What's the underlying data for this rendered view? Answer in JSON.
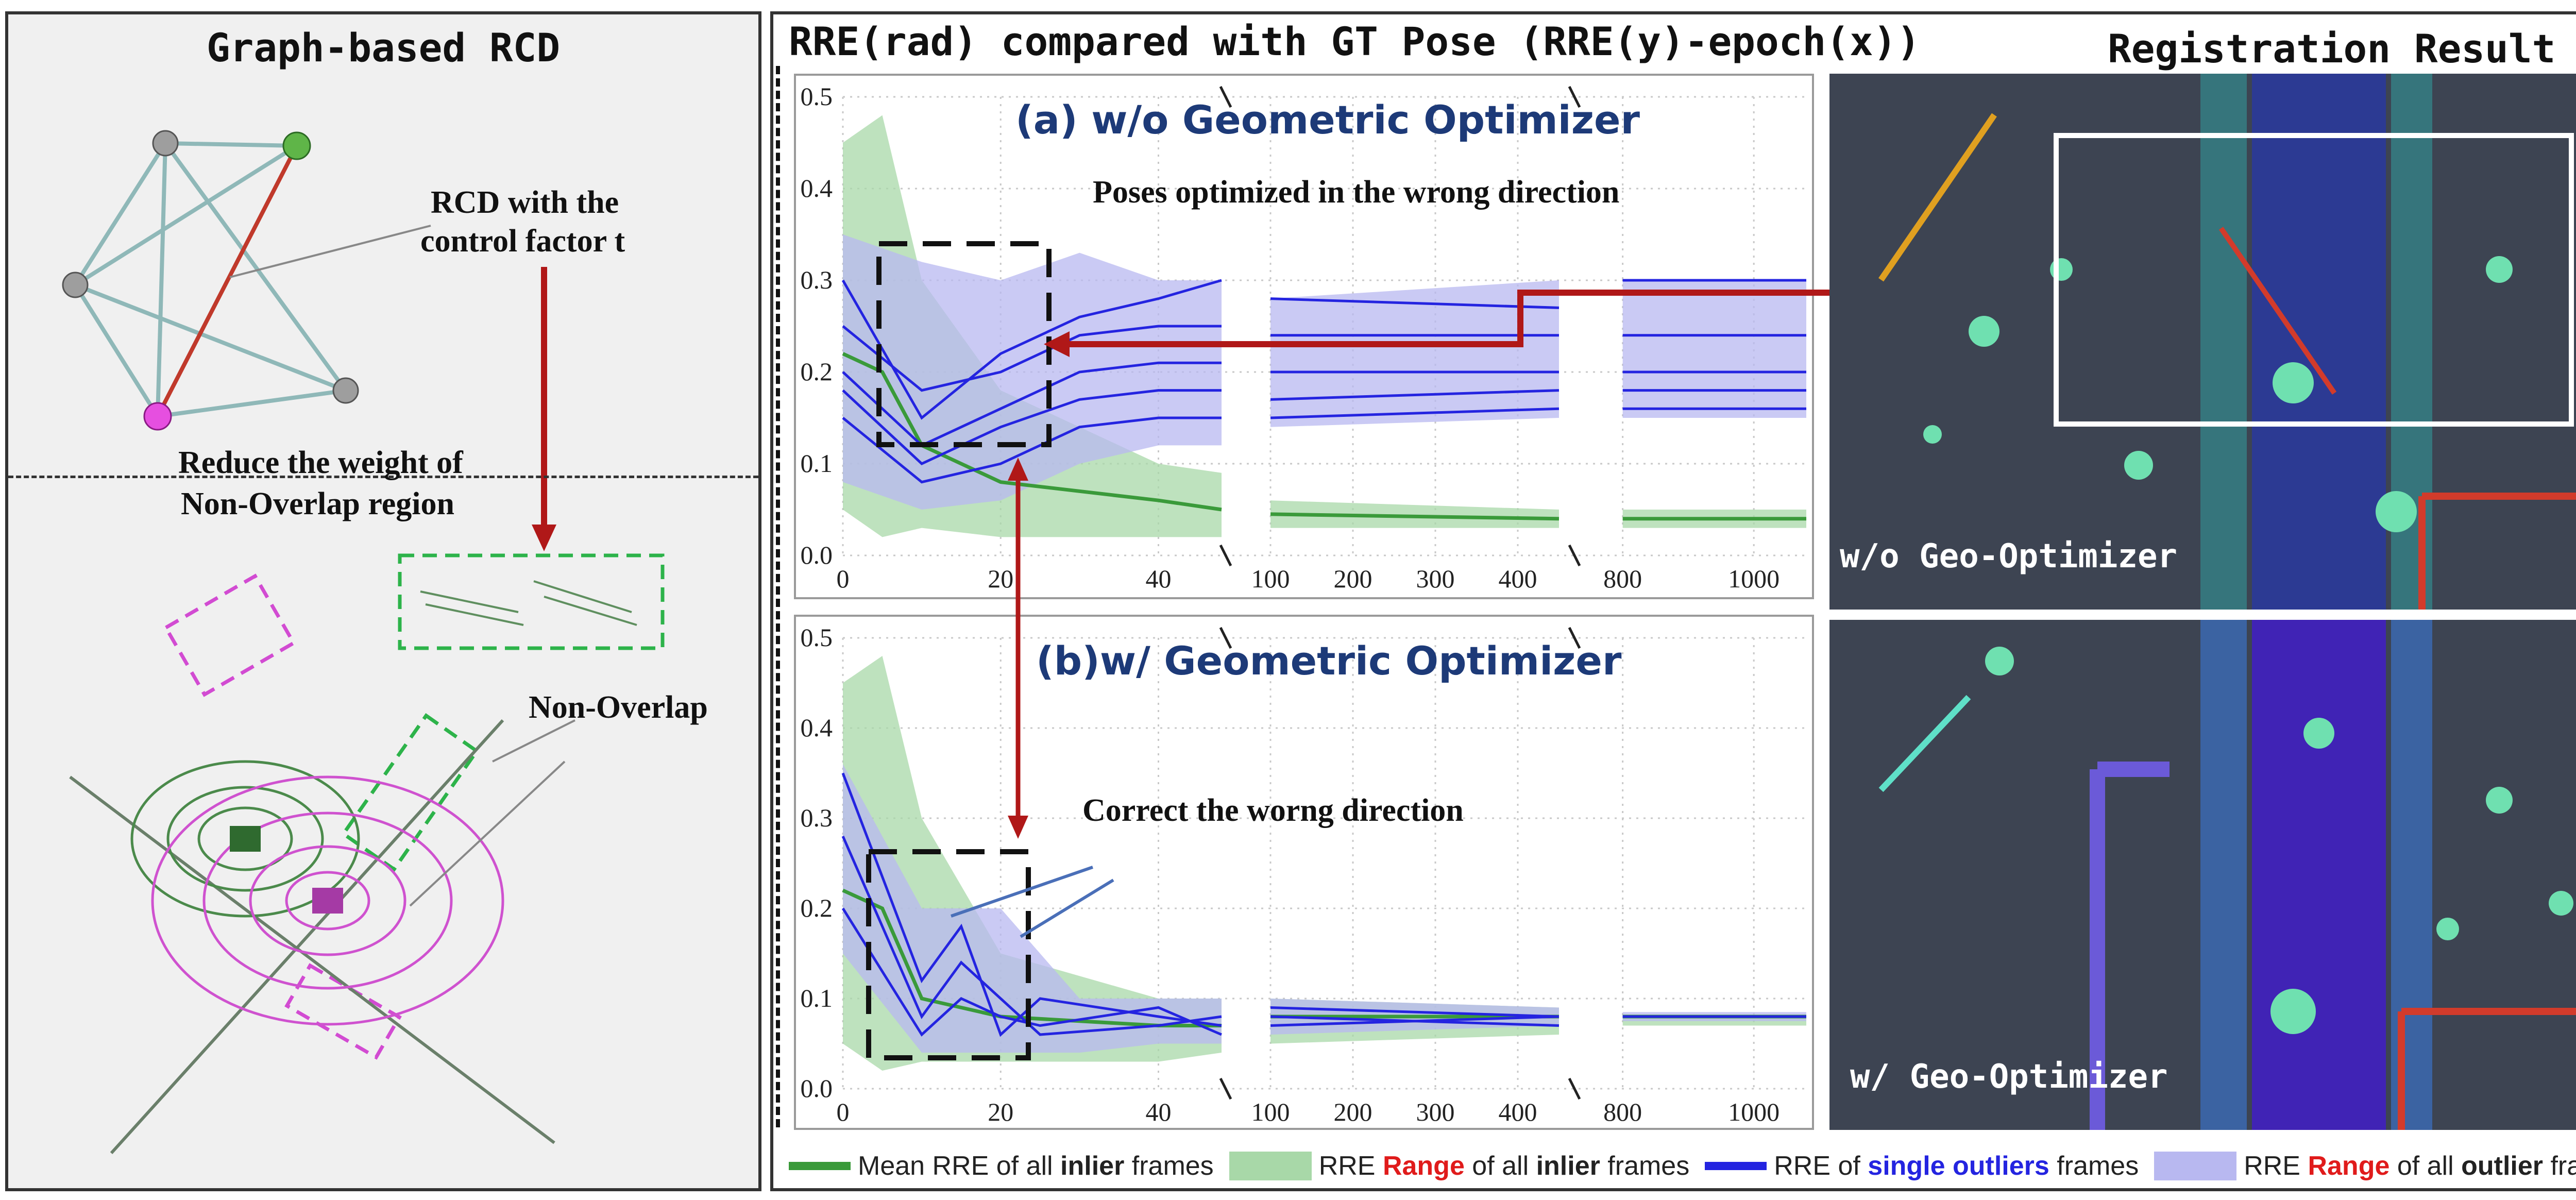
{
  "left_panel": {
    "title": "Graph-based RCD",
    "rcd_label_line1": "RCD with the",
    "rcd_label_line2": "control factor t",
    "reduce_line1": "Reduce the weight of",
    "reduce_line2": "Non-Overlap region",
    "non_overlap": "Non-Overlap",
    "node_colors": {
      "gray": "#9e9e9e",
      "green": "#5fb548",
      "magenta": "#e64fe0"
    },
    "edge_color": "#8fb8b8",
    "highlight_edge_color": "#c0392b"
  },
  "main_panel": {
    "title": "RRE(rad) compared with GT Pose (RRE(y)-epoch(x))",
    "registration_title": "Registration Result",
    "reg_label_top": "w/o Geo-Optimizer",
    "reg_label_bottom": "w/ Geo-Optimizer",
    "annotation_top": "Poses optimized in the wrong direction",
    "annotation_bottom": "Correct the worng direction",
    "arrow_color": "#b01818"
  },
  "legend": [
    {
      "swatch": "line",
      "color": "#3a9a3a",
      "pre": "Mean RRE of all ",
      "bold": "inlier",
      "bold_color": "#222222",
      "post": " frames"
    },
    {
      "swatch": "fill",
      "color": "#a8d8a8",
      "pre": "RRE ",
      "bold": "Range",
      "bold_color": "#e01b1b",
      "mid": " of all ",
      "bold2": "inlier",
      "post": " frames"
    },
    {
      "swatch": "line",
      "color": "#2424e0",
      "pre": "RRE of ",
      "bold": "single outliers",
      "bold_color": "#2424e0",
      "post": " frames"
    },
    {
      "swatch": "fill",
      "color": "#b8b8f0",
      "pre": "RRE ",
      "bold": "Range",
      "bold_color": "#e01b1b",
      "mid": " of all ",
      "bold2": "outlier",
      "post": " frames"
    }
  ],
  "chart_data": [
    {
      "type": "line",
      "title": "(a) w/o Geometric Optimizer",
      "xlabel": "",
      "ylabel": "",
      "ylim": [
        0.0,
        0.5
      ],
      "y_ticks": [
        "0.0",
        "0.1",
        "0.2",
        "0.3",
        "0.4",
        "0.5"
      ],
      "x_segments": [
        {
          "range": [
            0,
            48
          ],
          "ticks": [
            "0",
            "20",
            "40"
          ]
        },
        {
          "range": [
            50,
            450
          ],
          "ticks": [
            "100",
            "200",
            "300",
            "400"
          ]
        },
        {
          "range": [
            750,
            1080
          ],
          "ticks": [
            "800",
            "1000"
          ]
        }
      ],
      "inlier_mean": [
        [
          0,
          0.22
        ],
        [
          5,
          0.2
        ],
        [
          10,
          0.12
        ],
        [
          20,
          0.08
        ],
        [
          40,
          0.06
        ],
        [
          48,
          0.05
        ],
        [
          100,
          0.045
        ],
        [
          450,
          0.04
        ],
        [
          800,
          0.04
        ],
        [
          1080,
          0.04
        ]
      ],
      "inlier_band": [
        [
          0,
          0.05,
          0.45
        ],
        [
          5,
          0.02,
          0.48
        ],
        [
          10,
          0.03,
          0.3
        ],
        [
          20,
          0.02,
          0.18
        ],
        [
          40,
          0.02,
          0.1
        ],
        [
          48,
          0.02,
          0.09
        ],
        [
          100,
          0.03,
          0.06
        ],
        [
          450,
          0.03,
          0.05
        ],
        [
          800,
          0.03,
          0.05
        ],
        [
          1080,
          0.03,
          0.05
        ]
      ],
      "outlier_band": [
        [
          0,
          0.08,
          0.35
        ],
        [
          10,
          0.05,
          0.32
        ],
        [
          20,
          0.06,
          0.3
        ],
        [
          30,
          0.1,
          0.33
        ],
        [
          40,
          0.12,
          0.3
        ],
        [
          48,
          0.12,
          0.3
        ],
        [
          100,
          0.14,
          0.28
        ],
        [
          450,
          0.15,
          0.3
        ],
        [
          800,
          0.15,
          0.3
        ],
        [
          1080,
          0.15,
          0.3
        ]
      ],
      "outliers": [
        [
          [
            0,
            0.3
          ],
          [
            10,
            0.15
          ],
          [
            20,
            0.22
          ],
          [
            30,
            0.26
          ],
          [
            40,
            0.28
          ],
          [
            48,
            0.3
          ],
          [
            100,
            0.28
          ],
          [
            450,
            0.27
          ],
          [
            800,
            0.3
          ],
          [
            1080,
            0.3
          ]
        ],
        [
          [
            0,
            0.25
          ],
          [
            10,
            0.18
          ],
          [
            20,
            0.2
          ],
          [
            30,
            0.24
          ],
          [
            40,
            0.25
          ],
          [
            48,
            0.25
          ],
          [
            100,
            0.24
          ],
          [
            450,
            0.24
          ],
          [
            800,
            0.24
          ],
          [
            1080,
            0.24
          ]
        ],
        [
          [
            0,
            0.2
          ],
          [
            10,
            0.12
          ],
          [
            20,
            0.16
          ],
          [
            30,
            0.2
          ],
          [
            40,
            0.21
          ],
          [
            48,
            0.21
          ],
          [
            100,
            0.2
          ],
          [
            450,
            0.2
          ],
          [
            800,
            0.2
          ],
          [
            1080,
            0.2
          ]
        ],
        [
          [
            0,
            0.18
          ],
          [
            10,
            0.1
          ],
          [
            20,
            0.14
          ],
          [
            30,
            0.17
          ],
          [
            40,
            0.18
          ],
          [
            48,
            0.18
          ],
          [
            100,
            0.17
          ],
          [
            450,
            0.18
          ],
          [
            800,
            0.18
          ],
          [
            1080,
            0.18
          ]
        ],
        [
          [
            0,
            0.15
          ],
          [
            10,
            0.08
          ],
          [
            20,
            0.1
          ],
          [
            30,
            0.14
          ],
          [
            40,
            0.15
          ],
          [
            48,
            0.15
          ],
          [
            100,
            0.15
          ],
          [
            450,
            0.16
          ],
          [
            800,
            0.16
          ],
          [
            1080,
            0.16
          ]
        ]
      ]
    },
    {
      "type": "line",
      "title": "(b)w/ Geometric Optimizer",
      "xlabel": "",
      "ylabel": "",
      "ylim": [
        0.0,
        0.5
      ],
      "y_ticks": [
        "0.0",
        "0.1",
        "0.2",
        "0.3",
        "0.4",
        "0.5"
      ],
      "x_segments": [
        {
          "range": [
            0,
            48
          ],
          "ticks": [
            "0",
            "20",
            "40"
          ]
        },
        {
          "range": [
            50,
            450
          ],
          "ticks": [
            "100",
            "200",
            "300",
            "400"
          ]
        },
        {
          "range": [
            750,
            1080
          ],
          "ticks": [
            "800",
            "1000"
          ]
        }
      ],
      "inlier_mean": [
        [
          0,
          0.22
        ],
        [
          5,
          0.2
        ],
        [
          10,
          0.1
        ],
        [
          20,
          0.08
        ],
        [
          40,
          0.07
        ],
        [
          48,
          0.07
        ],
        [
          100,
          0.08
        ],
        [
          450,
          0.08
        ],
        [
          800,
          0.08
        ],
        [
          1080,
          0.08
        ]
      ],
      "inlier_band": [
        [
          0,
          0.05,
          0.45
        ],
        [
          5,
          0.02,
          0.48
        ],
        [
          10,
          0.03,
          0.3
        ],
        [
          20,
          0.03,
          0.15
        ],
        [
          40,
          0.03,
          0.1
        ],
        [
          48,
          0.04,
          0.1
        ],
        [
          100,
          0.05,
          0.1
        ],
        [
          450,
          0.06,
          0.09
        ],
        [
          800,
          0.07,
          0.08
        ],
        [
          1080,
          0.07,
          0.08
        ]
      ],
      "outlier_band": [
        [
          0,
          0.15,
          0.36
        ],
        [
          10,
          0.04,
          0.2
        ],
        [
          20,
          0.04,
          0.2
        ],
        [
          30,
          0.04,
          0.1
        ],
        [
          40,
          0.05,
          0.1
        ],
        [
          48,
          0.05,
          0.1
        ],
        [
          100,
          0.06,
          0.1
        ],
        [
          450,
          0.07,
          0.09
        ],
        [
          800,
          0.075,
          0.085
        ],
        [
          1080,
          0.075,
          0.085
        ]
      ],
      "outliers": [
        [
          [
            0,
            0.35
          ],
          [
            10,
            0.12
          ],
          [
            15,
            0.18
          ],
          [
            20,
            0.06
          ],
          [
            25,
            0.1
          ],
          [
            40,
            0.08
          ],
          [
            48,
            0.07
          ],
          [
            100,
            0.09
          ],
          [
            450,
            0.08
          ],
          [
            800,
            0.08
          ],
          [
            1080,
            0.08
          ]
        ],
        [
          [
            0,
            0.28
          ],
          [
            10,
            0.08
          ],
          [
            15,
            0.14
          ],
          [
            20,
            0.1
          ],
          [
            25,
            0.06
          ],
          [
            40,
            0.07
          ],
          [
            48,
            0.08
          ],
          [
            100,
            0.07
          ],
          [
            450,
            0.08
          ],
          [
            800,
            0.08
          ],
          [
            1080,
            0.08
          ]
        ],
        [
          [
            0,
            0.2
          ],
          [
            10,
            0.06
          ],
          [
            15,
            0.1
          ],
          [
            20,
            0.08
          ],
          [
            25,
            0.07
          ],
          [
            40,
            0.09
          ],
          [
            48,
            0.06
          ],
          [
            100,
            0.08
          ],
          [
            450,
            0.07
          ],
          [
            800,
            0.08
          ],
          [
            1080,
            0.08
          ]
        ]
      ]
    }
  ]
}
